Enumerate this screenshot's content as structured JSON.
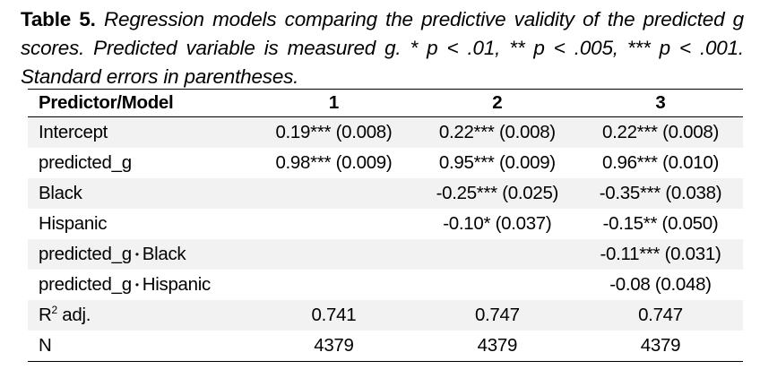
{
  "caption": {
    "lead": "Table 5.",
    "body": "Regression models comparing the predictive validity of the predicted g scores. Predicted variable is measured g. * p < .01, ** p < .005, *** p < .001. Standard errors in parentheses."
  },
  "table": {
    "headers": [
      "Predictor/Model",
      "1",
      "2",
      "3"
    ],
    "rows": [
      {
        "label": "Intercept",
        "m1": "0.19*** (0.008)",
        "m2": "0.22*** (0.008)",
        "m3": "0.22*** (0.008)"
      },
      {
        "label": "predicted_g",
        "m1": "0.98*** (0.009)",
        "m2": "0.95*** (0.009)",
        "m3": "0.96*** (0.010)"
      },
      {
        "label": "Black",
        "m1": "",
        "m2": "-0.25*** (0.025)",
        "m3": "-0.35*** (0.038)"
      },
      {
        "label": "Hispanic",
        "m1": "",
        "m2": "-0.10* (0.037)",
        "m3": "-0.15** (0.050)"
      },
      {
        "label_a": "predicted_g",
        "label_sep": "•",
        "label_b": "Black",
        "m1": "",
        "m2": "",
        "m3": "-0.11*** (0.031)"
      },
      {
        "label_a": "predicted_g",
        "label_sep": "•",
        "label_b": "Hispanic",
        "m1": "",
        "m2": "",
        "m3": "-0.08 (0.048)"
      },
      {
        "label_a": "R",
        "label_sup": "2",
        "label_b": "adj.",
        "m1": "0.741",
        "m2": "0.747",
        "m3": "0.747"
      },
      {
        "label": "N",
        "m1": "4379",
        "m2": "4379",
        "m3": "4379"
      }
    ]
  }
}
